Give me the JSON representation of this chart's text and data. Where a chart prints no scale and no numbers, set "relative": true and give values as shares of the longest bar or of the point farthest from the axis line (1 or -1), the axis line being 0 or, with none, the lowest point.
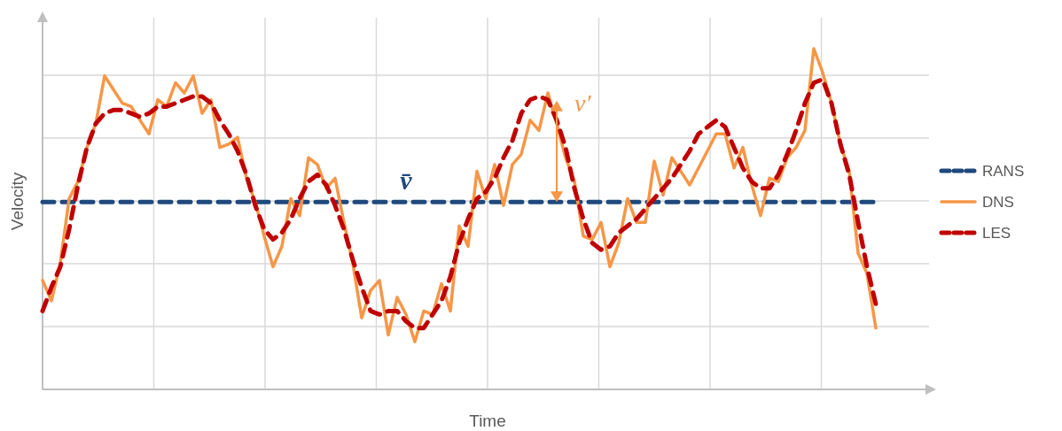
{
  "chart_data": {
    "type": "line",
    "relative": true,
    "xlabel": "Time",
    "ylabel": "Velocity",
    "grid": true,
    "legend": "right",
    "categories": [
      null,
      null,
      null,
      null,
      null,
      null,
      null,
      null,
      null,
      null,
      null,
      null,
      null,
      null,
      null,
      null,
      null,
      null,
      null,
      null,
      null,
      null,
      null,
      null,
      null,
      null,
      null,
      null,
      null,
      null,
      null,
      null,
      null,
      null,
      null,
      null,
      null,
      null,
      null,
      null,
      null,
      null,
      null,
      null,
      null,
      null,
      null,
      null,
      null,
      null,
      null,
      null,
      null,
      null,
      null,
      null,
      null,
      null,
      null,
      null,
      null,
      null,
      null,
      null,
      null,
      null,
      null,
      null,
      null,
      null,
      null,
      null,
      null,
      null,
      null,
      null,
      null,
      null,
      null,
      null,
      null,
      null,
      null,
      null,
      null,
      null,
      null,
      null,
      null,
      null,
      null,
      null,
      null,
      null,
      null
    ],
    "annotations": [
      "v̄",
      "v′"
    ],
    "series": [
      {
        "name": "RANS",
        "color": "#1f497d",
        "line_style": "dashed",
        "values": [
          0.55,
          0.55,
          0.55,
          0.55,
          0.55,
          0.55,
          0.55,
          0.55,
          0.55,
          0.55,
          0.55,
          0.55,
          0.55,
          0.55,
          0.55,
          0.55,
          0.55,
          0.55,
          0.55,
          0.55,
          0.55,
          0.55,
          0.55,
          0.55,
          0.55,
          0.55,
          0.55,
          0.55,
          0.55,
          0.55,
          0.55,
          0.55,
          0.55,
          0.55,
          0.55,
          0.55,
          0.55,
          0.55,
          0.55,
          0.55,
          0.55,
          0.55,
          0.55,
          0.55,
          0.55,
          0.55,
          0.55,
          0.55,
          0.55,
          0.55,
          0.55,
          0.55,
          0.55,
          0.55,
          0.55,
          0.55,
          0.55,
          0.55,
          0.55,
          0.55,
          0.55,
          0.55,
          0.55,
          0.55,
          0.55,
          0.55,
          0.55,
          0.55,
          0.55,
          0.55,
          0.55,
          0.55,
          0.55,
          0.55,
          0.55,
          0.55,
          0.55,
          0.55,
          0.55,
          0.55,
          0.55,
          0.55,
          0.55,
          0.55,
          0.55,
          0.55,
          0.55,
          0.55,
          0.55,
          0.55,
          0.55,
          0.55,
          0.55,
          0.55,
          0.55
        ]
      },
      {
        "name": "DNS",
        "color": "#f79646",
        "line_style": "solid",
        "values": [
          0.32,
          0.26,
          0.37,
          0.56,
          0.61,
          0.71,
          0.78,
          0.92,
          0.88,
          0.84,
          0.83,
          0.79,
          0.75,
          0.85,
          0.83,
          0.9,
          0.87,
          0.92,
          0.81,
          0.85,
          0.71,
          0.72,
          0.74,
          0.62,
          0.55,
          0.45,
          0.36,
          0.42,
          0.56,
          0.51,
          0.68,
          0.66,
          0.59,
          0.62,
          0.49,
          0.37,
          0.21,
          0.29,
          0.32,
          0.16,
          0.27,
          0.22,
          0.14,
          0.23,
          0.22,
          0.31,
          0.23,
          0.48,
          0.42,
          0.64,
          0.56,
          0.66,
          0.54,
          0.66,
          0.69,
          0.79,
          0.76,
          0.87,
          0.78,
          0.68,
          0.61,
          0.45,
          0.44,
          0.49,
          0.36,
          0.43,
          0.56,
          0.49,
          0.49,
          0.67,
          0.57,
          0.68,
          0.64,
          0.6,
          0.65,
          0.7,
          0.75,
          0.75,
          0.65,
          0.71,
          0.6,
          0.51,
          0.62,
          0.61,
          0.68,
          0.71,
          0.76,
          1.0,
          0.93,
          0.84,
          0.72,
          0.64,
          0.4,
          0.34,
          0.18
        ]
      },
      {
        "name": "LES",
        "color": "#c00000",
        "line_style": "dashed",
        "values": [
          0.23,
          0.3,
          0.36,
          0.47,
          0.6,
          0.71,
          0.78,
          0.81,
          0.82,
          0.82,
          0.81,
          0.8,
          0.81,
          0.83,
          0.83,
          0.84,
          0.85,
          0.86,
          0.86,
          0.84,
          0.79,
          0.75,
          0.7,
          0.63,
          0.54,
          0.47,
          0.44,
          0.46,
          0.5,
          0.56,
          0.61,
          0.63,
          0.6,
          0.54,
          0.47,
          0.38,
          0.3,
          0.23,
          0.22,
          0.23,
          0.23,
          0.2,
          0.18,
          0.18,
          0.22,
          0.26,
          0.33,
          0.43,
          0.5,
          0.56,
          0.58,
          0.62,
          0.68,
          0.73,
          0.81,
          0.85,
          0.86,
          0.85,
          0.79,
          0.71,
          0.59,
          0.5,
          0.43,
          0.41,
          0.42,
          0.46,
          0.48,
          0.5,
          0.53,
          0.56,
          0.59,
          0.62,
          0.66,
          0.7,
          0.75,
          0.77,
          0.79,
          0.77,
          0.71,
          0.65,
          0.61,
          0.59,
          0.59,
          0.63,
          0.69,
          0.76,
          0.84,
          0.9,
          0.91,
          0.84,
          0.72,
          0.63,
          0.49,
          0.36,
          0.25
        ]
      }
    ]
  }
}
